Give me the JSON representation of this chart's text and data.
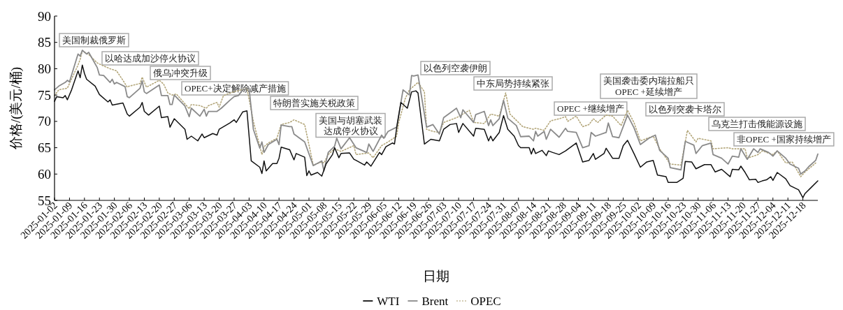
{
  "chart_data": {
    "type": "line",
    "xlabel": "日期",
    "ylabel": "价格/(美元/桶)",
    "legend": "bottom",
    "xlim": [
      "2025-01-02",
      "2025-12-25"
    ],
    "ylim": [
      55,
      90
    ],
    "yticks": [
      55,
      60,
      65,
      70,
      75,
      80,
      85,
      90
    ],
    "xticks": [
      "2025-01-02",
      "2025-01-09",
      "2025-01-16",
      "2025-01-23",
      "2025-01-30",
      "2025-02-06",
      "2025-02-13",
      "2025-02-20",
      "2025-02-27",
      "2025-03-06",
      "2025-03-13",
      "2025-03-20",
      "2025-03-27",
      "2025-04-03",
      "2025-04-10",
      "2025-04-17",
      "2025-04-24",
      "2025-05-01",
      "2025-05-08",
      "2025-05-15",
      "2025-05-22",
      "2025-05-29",
      "2025-06-05",
      "2025-06-12",
      "2025-06-19",
      "2025-06-26",
      "2025-07-03",
      "2025-07-10",
      "2025-07-17",
      "2025-07-24",
      "2025-07-31",
      "2025-08-07",
      "2025-08-14",
      "2025-08-21",
      "2025-08-28",
      "2025-09-04",
      "2025-09-11",
      "2025-09-18",
      "2025-09-25",
      "2025-10-02",
      "2025-10-09",
      "2025-10-16",
      "2025-10-23",
      "2025-10-30",
      "2025-11-06",
      "2025-11-13",
      "2025-11-20",
      "2025-11-27",
      "2025-12-04",
      "2025-12-11",
      "2025-12-18"
    ],
    "series": [
      {
        "name": "WTI",
        "color": "#111111",
        "line_style": "solid",
        "x": [
          "2025-01-02",
          "2025-01-03",
          "2025-01-06",
          "2025-01-07",
          "2025-01-08",
          "2025-01-10",
          "2025-01-13",
          "2025-01-14",
          "2025-01-15",
          "2025-01-16",
          "2025-01-17",
          "2025-01-21",
          "2025-01-23",
          "2025-01-27",
          "2025-01-28",
          "2025-01-29",
          "2025-02-03",
          "2025-02-05",
          "2025-02-06",
          "2025-02-11",
          "2025-02-12",
          "2025-02-13",
          "2025-02-15",
          "2025-02-20",
          "2025-02-21",
          "2025-02-24",
          "2025-02-25",
          "2025-02-27",
          "2025-03-04",
          "2025-03-05",
          "2025-03-07",
          "2025-03-10",
          "2025-03-12",
          "2025-03-13",
          "2025-03-17",
          "2025-03-19",
          "2025-03-20",
          "2025-03-25",
          "2025-03-27",
          "2025-03-28",
          "2025-03-31",
          "2025-04-02",
          "2025-04-04",
          "2025-04-08",
          "2025-04-09",
          "2025-04-10",
          "2025-04-11",
          "2025-04-14",
          "2025-04-16",
          "2025-04-17",
          "2025-04-18",
          "2025-04-22",
          "2025-04-24",
          "2025-04-25",
          "2025-04-29",
          "2025-04-30",
          "2025-05-01",
          "2025-05-02",
          "2025-05-05",
          "2025-05-07",
          "2025-05-09",
          "2025-05-12",
          "2025-05-13",
          "2025-05-15",
          "2025-05-16",
          "2025-05-20",
          "2025-05-22",
          "2025-05-23",
          "2025-05-27",
          "2025-05-28",
          "2025-05-30",
          "2025-06-03",
          "2025-06-04",
          "2025-06-06",
          "2025-06-09",
          "2025-06-10",
          "2025-06-11",
          "2025-06-13",
          "2025-06-16",
          "2025-06-18",
          "2025-06-20",
          "2025-06-21",
          "2025-06-24",
          "2025-06-27",
          "2025-07-01",
          "2025-07-03",
          "2025-07-06",
          "2025-07-09",
          "2025-07-10",
          "2025-07-12",
          "2025-07-17",
          "2025-07-18",
          "2025-07-22",
          "2025-07-24",
          "2025-07-25",
          "2025-07-26",
          "2025-07-29",
          "2025-07-31",
          "2025-08-02",
          "2025-08-05",
          "2025-08-07",
          "2025-08-08",
          "2025-08-12",
          "2025-08-13",
          "2025-08-14",
          "2025-08-15",
          "2025-08-18",
          "2025-08-20",
          "2025-08-21",
          "2025-08-23",
          "2025-08-26",
          "2025-08-29",
          "2025-09-03",
          "2025-09-06",
          "2025-09-09",
          "2025-09-11",
          "2025-09-12",
          "2025-09-16",
          "2025-09-17",
          "2025-09-20",
          "2025-09-23",
          "2025-09-25",
          "2025-09-27",
          "2025-09-30",
          "2025-10-03",
          "2025-10-06",
          "2025-10-09",
          "2025-10-11",
          "2025-10-15",
          "2025-10-16",
          "2025-10-20",
          "2025-10-23",
          "2025-10-24",
          "2025-10-27",
          "2025-10-29",
          "2025-11-02",
          "2025-11-05",
          "2025-11-07",
          "2025-11-10",
          "2025-11-14",
          "2025-11-15",
          "2025-11-18",
          "2025-11-19",
          "2025-11-21",
          "2025-11-23",
          "2025-11-26",
          "2025-11-27",
          "2025-11-29",
          "2025-12-01",
          "2025-12-03",
          "2025-12-04",
          "2025-12-06",
          "2025-12-10",
          "2025-12-12",
          "2025-12-16",
          "2025-12-18",
          "2025-12-19",
          "2025-12-22",
          "2025-12-25"
        ],
        "values": [
          73.8,
          74.7,
          74.5,
          74.9,
          74.1,
          76.0,
          79.6,
          78.3,
          80.7,
          79.1,
          78.0,
          76.7,
          75.1,
          73.7,
          74.1,
          73.1,
          73.5,
          71.4,
          71.0,
          72.7,
          73.6,
          71.9,
          71.2,
          72.9,
          70.7,
          70.9,
          68.9,
          70.5,
          68.5,
          66.6,
          67.2,
          66.3,
          67.6,
          66.9,
          67.7,
          67.4,
          68.5,
          69.7,
          70.3,
          69.8,
          71.8,
          72.0,
          62.5,
          61.3,
          60.1,
          62.5,
          60.6,
          62.0,
          62.0,
          63.0,
          65.1,
          64.6,
          62.7,
          63.9,
          63.2,
          59.7,
          60.6,
          59.8,
          60.3,
          59.6,
          61.9,
          63.7,
          65.0,
          63.1,
          63.9,
          64.0,
          62.8,
          62.6,
          61.7,
          62.3,
          61.5,
          64.1,
          63.7,
          65.2,
          65.9,
          65.7,
          68.7,
          73.6,
          72.5,
          75.6,
          75.8,
          75.4,
          65.7,
          66.6,
          66.3,
          68.5,
          69.4,
          69.6,
          67.9,
          69.6,
          67.2,
          68.7,
          68.5,
          66.3,
          67.2,
          66.3,
          67.9,
          71.1,
          68.5,
          67.2,
          65.4,
          65.0,
          65.0,
          63.8,
          64.9,
          63.9,
          64.5,
          63.5,
          64.4,
          64.1,
          63.7,
          64.4,
          65.9,
          62.3,
          62.6,
          63.9,
          62.8,
          63.9,
          64.9,
          63.0,
          63.0,
          65.4,
          66.4,
          63.9,
          61.3,
          62.3,
          62.6,
          59.8,
          59.5,
          58.4,
          58.4,
          59.2,
          62.4,
          62.3,
          61.0,
          61.8,
          61.8,
          60.4,
          60.9,
          59.5,
          60.9,
          60.8,
          61.5,
          60.3,
          58.9,
          59.0,
          58.4,
          58.7,
          58.9,
          59.5,
          58.8,
          60.3,
          59.1,
          57.8,
          57.0,
          55.5,
          56.3,
          57.5,
          58.7
        ]
      },
      {
        "name": "Brent",
        "color": "#8a8a8a",
        "line_style": "solid",
        "x": [
          "2025-01-02",
          "2025-01-04",
          "2025-01-07",
          "2025-01-08",
          "2025-01-09",
          "2025-01-13",
          "2025-01-14",
          "2025-01-15",
          "2025-01-17",
          "2025-01-18",
          "2025-01-22",
          "2025-01-23",
          "2025-01-25",
          "2025-01-28",
          "2025-01-29",
          "2025-01-30",
          "2025-01-31",
          "2025-02-04",
          "2025-02-05",
          "2025-02-06",
          "2025-02-11",
          "2025-02-12",
          "2025-02-13",
          "2025-02-14",
          "2025-02-20",
          "2025-02-21",
          "2025-02-24",
          "2025-02-25",
          "2025-02-26",
          "2025-02-27",
          "2025-03-04",
          "2025-03-06",
          "2025-03-07",
          "2025-03-11",
          "2025-03-13",
          "2025-03-14",
          "2025-03-15",
          "2025-03-19",
          "2025-03-21",
          "2025-03-25",
          "2025-03-27",
          "2025-03-29",
          "2025-03-31",
          "2025-04-03",
          "2025-04-05",
          "2025-04-08",
          "2025-04-09",
          "2025-04-10",
          "2025-04-12",
          "2025-04-16",
          "2025-04-17",
          "2025-04-18",
          "2025-04-22",
          "2025-04-23",
          "2025-04-24",
          "2025-04-29",
          "2025-05-03",
          "2025-05-07",
          "2025-05-08",
          "2025-05-10",
          "2025-05-13",
          "2025-05-14",
          "2025-05-16",
          "2025-05-20",
          "2025-05-23",
          "2025-05-28",
          "2025-05-29",
          "2025-05-31",
          "2025-06-04",
          "2025-06-05",
          "2025-06-07",
          "2025-06-11",
          "2025-06-12",
          "2025-06-14",
          "2025-06-17",
          "2025-06-18",
          "2025-06-19",
          "2025-06-21",
          "2025-06-25",
          "2025-06-28",
          "2025-07-01",
          "2025-07-03",
          "2025-07-09",
          "2025-07-11",
          "2025-07-12",
          "2025-07-17",
          "2025-07-18",
          "2025-07-22",
          "2025-07-24",
          "2025-07-25",
          "2025-07-26",
          "2025-07-29",
          "2025-07-31",
          "2025-08-02",
          "2025-08-06",
          "2025-08-08",
          "2025-08-12",
          "2025-08-14",
          "2025-08-15",
          "2025-08-16",
          "2025-08-19",
          "2025-08-20",
          "2025-08-22",
          "2025-08-26",
          "2025-08-29",
          "2025-08-30",
          "2025-09-03",
          "2025-09-06",
          "2025-09-09",
          "2025-09-10",
          "2025-09-12",
          "2025-09-17",
          "2025-09-18",
          "2025-09-20",
          "2025-09-23",
          "2025-09-27",
          "2025-09-30",
          "2025-10-03",
          "2025-10-07",
          "2025-10-10",
          "2025-10-12",
          "2025-10-16",
          "2025-10-17",
          "2025-10-22",
          "2025-10-24",
          "2025-10-28",
          "2025-10-29",
          "2025-11-01",
          "2025-11-05",
          "2025-11-06",
          "2025-11-10",
          "2025-11-13",
          "2025-11-15",
          "2025-11-18",
          "2025-11-19",
          "2025-11-22",
          "2025-11-25",
          "2025-11-27",
          "2025-11-28",
          "2025-12-02",
          "2025-12-04",
          "2025-12-06",
          "2025-12-10",
          "2025-12-12",
          "2025-12-16",
          "2025-12-17",
          "2025-12-19",
          "2025-12-21",
          "2025-12-24",
          "2025-12-25"
        ],
        "values": [
          76.0,
          76.7,
          77.4,
          77.8,
          77.5,
          82.8,
          82.4,
          83.5,
          82.8,
          83.1,
          80.2,
          78.8,
          78.7,
          77.4,
          78.0,
          77.1,
          77.4,
          76.6,
          74.7,
          74.5,
          76.3,
          77.7,
          75.6,
          75.3,
          76.9,
          74.9,
          74.9,
          73.2,
          73.2,
          75.0,
          72.9,
          70.9,
          72.5,
          71.0,
          72.3,
          71.0,
          71.9,
          71.9,
          72.5,
          74.0,
          74.7,
          74.9,
          76.0,
          76.3,
          68.5,
          64.9,
          66.1,
          64.1,
          65.6,
          66.6,
          65.6,
          69.3,
          69.0,
          69.0,
          67.6,
          66.1,
          61.6,
          62.5,
          60.6,
          64.1,
          65.3,
          66.8,
          64.8,
          66.9,
          65.0,
          64.1,
          65.7,
          64.3,
          67.4,
          66.8,
          68.1,
          68.9,
          71.2,
          76.0,
          75.0,
          78.7,
          78.6,
          78.8,
          68.9,
          69.4,
          67.6,
          70.7,
          72.5,
          70.7,
          72.2,
          69.8,
          71.3,
          71.9,
          69.2,
          70.3,
          69.2,
          70.5,
          74.0,
          70.6,
          69.2,
          67.1,
          67.2,
          66.3,
          68.1,
          67.2,
          68.1,
          66.6,
          68.5,
          67.0,
          68.7,
          68.1,
          67.9,
          65.0,
          65.4,
          67.9,
          67.2,
          67.9,
          69.7,
          67.1,
          66.9,
          71.2,
          68.8,
          65.6,
          66.8,
          67.4,
          64.5,
          63.0,
          61.2,
          60.8,
          66.2,
          65.5,
          63.9,
          65.4,
          65.9,
          63.7,
          63.0,
          61.9,
          63.4,
          63.2,
          64.8,
          62.8,
          64.8,
          64.1,
          64.8,
          64.1,
          63.4,
          64.4,
          63.0,
          61.9,
          61.1,
          60.0,
          60.6,
          61.5,
          62.6,
          63.8
        ]
      },
      {
        "name": "OPEC",
        "color": "#b3a67a",
        "line_style": "dotted",
        "x": [
          "2025-01-02",
          "2025-01-04",
          "2025-01-08",
          "2025-01-09",
          "2025-01-13",
          "2025-01-14",
          "2025-01-15",
          "2025-01-18",
          "2025-01-22",
          "2025-01-24",
          "2025-01-28",
          "2025-01-31",
          "2025-02-03",
          "2025-02-05",
          "2025-02-06",
          "2025-02-11",
          "2025-02-12",
          "2025-02-14",
          "2025-02-20",
          "2025-02-22",
          "2025-02-24",
          "2025-02-26",
          "2025-02-28",
          "2025-03-06",
          "2025-03-07",
          "2025-03-11",
          "2025-03-14",
          "2025-03-15",
          "2025-03-19",
          "2025-03-20",
          "2025-03-22",
          "2025-03-26",
          "2025-04-02",
          "2025-04-05",
          "2025-04-09",
          "2025-04-10",
          "2025-04-12",
          "2025-04-16",
          "2025-04-18",
          "2025-04-22",
          "2025-04-24",
          "2025-04-29",
          "2025-05-03",
          "2025-05-07",
          "2025-05-08",
          "2025-05-10",
          "2025-05-13",
          "2025-05-16",
          "2025-05-22",
          "2025-05-23",
          "2025-05-29",
          "2025-05-31",
          "2025-06-04",
          "2025-06-07",
          "2025-06-11",
          "2025-06-12",
          "2025-06-15",
          "2025-06-17",
          "2025-06-21",
          "2025-06-24",
          "2025-06-25",
          "2025-06-28",
          "2025-07-01",
          "2025-07-03",
          "2025-07-09",
          "2025-07-12",
          "2025-07-15",
          "2025-07-17",
          "2025-07-22",
          "2025-07-25",
          "2025-07-29",
          "2025-08-01",
          "2025-08-03",
          "2025-08-09",
          "2025-08-14",
          "2025-08-15",
          "2025-08-19",
          "2025-08-22",
          "2025-08-26",
          "2025-08-29",
          "2025-08-30",
          "2025-09-03",
          "2025-09-06",
          "2025-09-09",
          "2025-09-11",
          "2025-09-13",
          "2025-09-17",
          "2025-09-20",
          "2025-09-24",
          "2025-09-27",
          "2025-09-30",
          "2025-10-03",
          "2025-10-09",
          "2025-10-12",
          "2025-10-17",
          "2025-10-22",
          "2025-10-25",
          "2025-10-29",
          "2025-10-30",
          "2025-11-05",
          "2025-11-06",
          "2025-11-13",
          "2025-11-15",
          "2025-11-21",
          "2025-11-22",
          "2025-11-27",
          "2025-11-29",
          "2025-12-04",
          "2025-12-06",
          "2025-12-10",
          "2025-12-13",
          "2025-12-17",
          "2025-12-19",
          "2025-12-24"
        ],
        "values": [
          74.9,
          76.0,
          76.3,
          77.2,
          80.7,
          81.8,
          83.4,
          82.7,
          81.1,
          80.7,
          80.0,
          79.6,
          77.8,
          76.5,
          76.7,
          77.2,
          78.4,
          76.5,
          77.8,
          77.1,
          75.4,
          75.0,
          75.2,
          72.4,
          73.2,
          73.0,
          72.5,
          73.0,
          73.6,
          72.7,
          74.9,
          75.5,
          76.3,
          70.0,
          63.7,
          65.2,
          65.9,
          66.8,
          69.4,
          69.8,
          70.3,
          69.4,
          61.7,
          62.3,
          62.1,
          63.7,
          64.8,
          64.3,
          65.4,
          63.7,
          64.0,
          63.1,
          65.4,
          66.1,
          67.2,
          69.8,
          74.3,
          76.0,
          77.4,
          75.6,
          68.5,
          68.1,
          67.9,
          69.8,
          70.7,
          71.4,
          72.1,
          69.8,
          69.6,
          71.4,
          71.0,
          75.4,
          71.4,
          69.0,
          68.5,
          68.7,
          68.3,
          70.1,
          70.5,
          70.9,
          70.0,
          71.0,
          69.0,
          69.4,
          70.5,
          69.8,
          71.2,
          71.0,
          69.2,
          72.1,
          69.8,
          66.3,
          67.2,
          64.8,
          61.9,
          61.7,
          68.3,
          66.1,
          66.8,
          66.3,
          64.8,
          65.0,
          64.8,
          64.8,
          63.0,
          63.7,
          64.4,
          63.7,
          64.4,
          62.1,
          62.3,
          59.5,
          60.4,
          62.1
        ]
      }
    ],
    "annotations": [
      "美国制裁俄罗斯",
      "以哈达成加沙停火协议",
      "俄乌冲突升级",
      "OPEC+决定解除减产措施",
      "特朗普实施关税政策",
      "美国与胡塞武装达成停火协议",
      "以色列空袭伊朗",
      "中东局势持续紧张",
      "OPEC +继续增产",
      "美国袭击委内瑞拉船只",
      "OPEC +延续增产",
      "以色列突袭卡塔尔",
      "乌克兰打击俄能源设施",
      "非OPEC +国家持续增产"
    ]
  }
}
